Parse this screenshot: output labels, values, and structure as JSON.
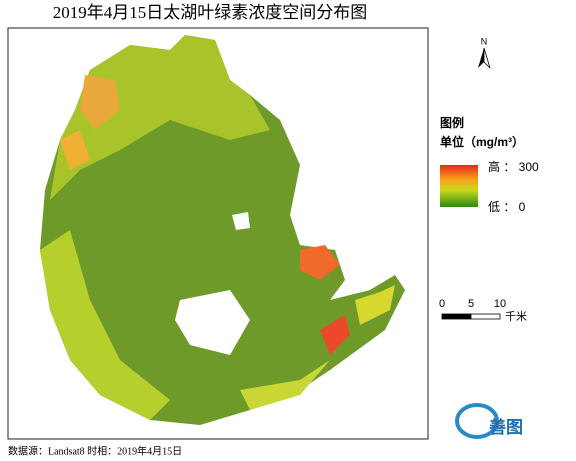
{
  "title": "2019年4月15日太湖叶绿素浓度空间分布图",
  "north_arrow": {
    "label": "N"
  },
  "legend": {
    "title": "图例",
    "unit": "单位（mg/m³）",
    "high": "高 ： 300",
    "low": "低 ： 0"
  },
  "scale_bar": {
    "ticks": [
      0,
      5,
      10
    ],
    "unit": "千米"
  },
  "logo": {
    "text": "善图"
  },
  "footer": "数据源：Landsat8 时相：2019年4月15日"
}
